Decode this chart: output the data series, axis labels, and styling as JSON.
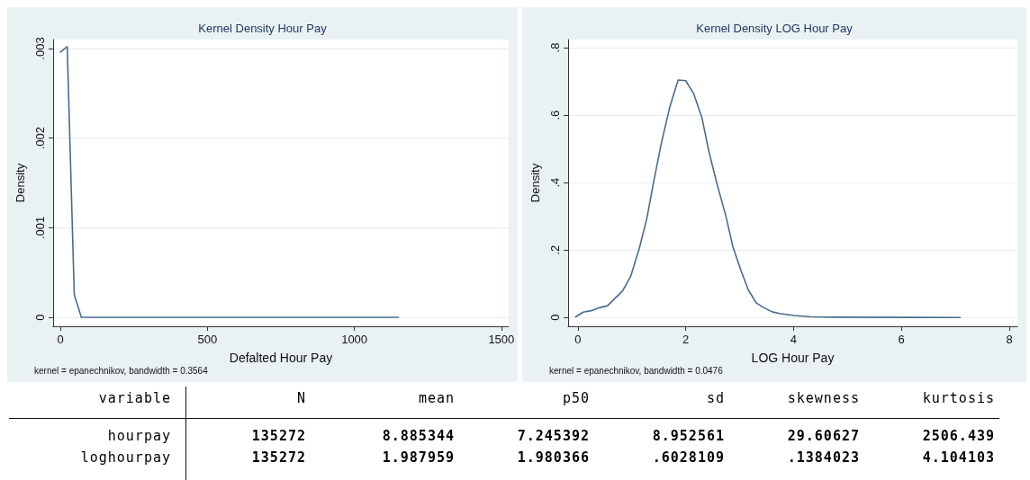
{
  "chart_data": [
    {
      "type": "line",
      "title": "Kernel Density Hour Pay",
      "xlabel": "Defalted Hour Pay",
      "ylabel": "Density",
      "annotations": [
        "kernel = epanechnikov, bandwidth = 0.3564"
      ],
      "x": [
        0,
        23,
        47,
        71,
        100,
        150,
        200,
        240,
        270,
        400,
        520,
        700,
        900,
        1100,
        1150
      ],
      "series": [
        {
          "color": "#4a6b8c",
          "values": [
            0.00296,
            0.00302,
            0.00025,
            0,
            0,
            0,
            0,
            0,
            0,
            0,
            0,
            0,
            0,
            0,
            0
          ]
        }
      ],
      "xlim": [
        -25,
        1525
      ],
      "xticks": [
        0,
        500,
        1000,
        1500
      ],
      "ylim": [
        -0.0001,
        0.0031
      ],
      "yticks": [
        0,
        {
          "value": 0.001,
          "label": ".001"
        },
        {
          "value": 0.002,
          "label": ".002"
        },
        {
          "value": 0.003,
          "label": ".003"
        }
      ],
      "grid": "y",
      "marker": "none",
      "line_style": "solid"
    },
    {
      "type": "line",
      "title": "Kernel Density LOG Hour Pay",
      "xlabel": "LOG Hour Pay",
      "ylabel": "Density",
      "annotations": [
        "kernel = epanechnikov, bandwidth = 0.0476"
      ],
      "x": [
        -0.04,
        0.1,
        0.27,
        0.4,
        0.55,
        0.83,
        0.98,
        1.14,
        1.28,
        1.42,
        1.56,
        1.71,
        1.86,
        2.0,
        2.15,
        2.3,
        2.43,
        2.59,
        2.74,
        2.88,
        3.03,
        3.16,
        3.31,
        3.45,
        3.6,
        3.74,
        4.01,
        4.33,
        4.81,
        7.09
      ],
      "series": [
        {
          "color": "#4a6b8c",
          "values": [
            0.002,
            0.016,
            0.021,
            0.029,
            0.035,
            0.079,
            0.122,
            0.205,
            0.294,
            0.414,
            0.525,
            0.627,
            0.704,
            0.702,
            0.663,
            0.593,
            0.492,
            0.39,
            0.304,
            0.207,
            0.137,
            0.082,
            0.043,
            0.029,
            0.017,
            0.012,
            0.006,
            0.002,
            0.001,
            0
          ]
        }
      ],
      "xlim": [
        -0.18,
        8.15
      ],
      "xticks": [
        0,
        2,
        4,
        6,
        8
      ],
      "ylim": [
        -0.026,
        0.824
      ],
      "yticks": [
        0,
        {
          "value": 0.2,
          "label": ".2"
        },
        {
          "value": 0.4,
          "label": ".4"
        },
        {
          "value": 0.6,
          "label": ".6"
        },
        {
          "value": 0.8,
          "label": ".8"
        }
      ],
      "grid": "y",
      "marker": "none",
      "line_style": "solid"
    },
    {
      "type": "other",
      "annotations": [
        "variable",
        "N",
        "mean",
        "p50",
        "sd",
        "skewness",
        "kurtosis",
        "hourpay",
        "135272",
        "8.885344",
        "7.245392",
        "8.952561",
        "29.60627",
        "2506.439",
        "loghourpay",
        "135272",
        "1.987959",
        "1.980366",
        ".6028109",
        ".1384023",
        "4.104103"
      ]
    }
  ]
}
